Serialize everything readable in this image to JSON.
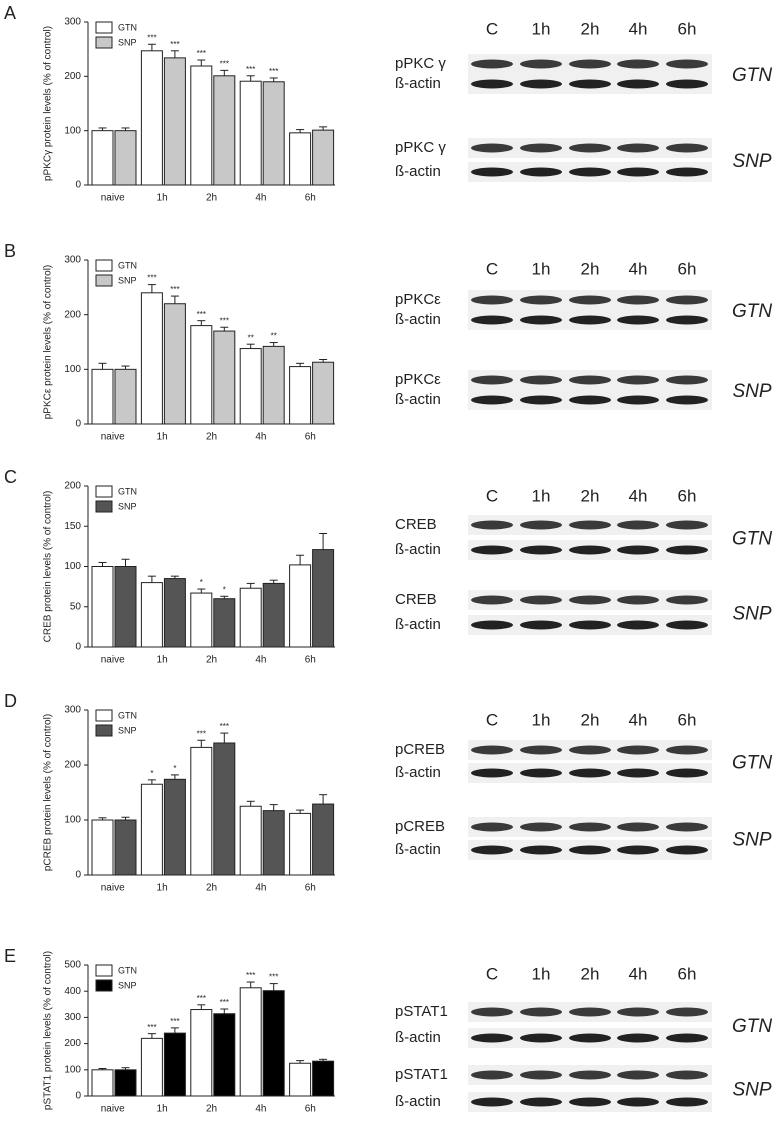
{
  "chart_data": [
    {
      "type": "bar",
      "panel": "A",
      "y_label": "pPKCγ protein levels (% of control)",
      "categories": [
        "naive",
        "1h",
        "2h",
        "4h",
        "6h"
      ],
      "series": [
        {
          "name": "GTN",
          "color": "#ffffff",
          "values": [
            100,
            247,
            219,
            191,
            96
          ],
          "errors": [
            5,
            12,
            11,
            10,
            6
          ],
          "annotations": [
            null,
            "***",
            "***",
            "***",
            null
          ]
        },
        {
          "name": "SNP",
          "color": "#c8c8c8",
          "values": [
            100,
            234,
            201,
            190,
            101
          ],
          "errors": [
            5,
            13,
            10,
            7,
            6
          ],
          "annotations": [
            null,
            "***",
            "***",
            "***",
            null
          ]
        }
      ],
      "ylim": [
        0,
        300
      ],
      "yticks": [
        0,
        100,
        200,
        300
      ]
    },
    {
      "type": "bar",
      "panel": "B",
      "y_label": "pPKCε protein levels (% of control)",
      "categories": [
        "naive",
        "1h",
        "2h",
        "4h",
        "6h"
      ],
      "series": [
        {
          "name": "GTN",
          "color": "#ffffff",
          "values": [
            100,
            240,
            180,
            138,
            105
          ],
          "errors": [
            11,
            15,
            9,
            8,
            6
          ],
          "annotations": [
            null,
            "***",
            "***",
            "**",
            null
          ]
        },
        {
          "name": "SNP",
          "color": "#c8c8c8",
          "values": [
            100,
            220,
            170,
            142,
            113
          ],
          "errors": [
            6,
            14,
            7,
            7,
            5
          ],
          "annotations": [
            null,
            "***",
            "***",
            "**",
            null
          ]
        }
      ],
      "ylim": [
        0,
        300
      ],
      "yticks": [
        0,
        100,
        200,
        300
      ]
    },
    {
      "type": "bar",
      "panel": "C",
      "y_label": "CREB protein levels (% of control)",
      "categories": [
        "naive",
        "1h",
        "2h",
        "4h",
        "6h"
      ],
      "series": [
        {
          "name": "GTN",
          "color": "#ffffff",
          "values": [
            100,
            80,
            67,
            73,
            102
          ],
          "errors": [
            5,
            8,
            5,
            6,
            12
          ],
          "annotations": [
            null,
            null,
            "*",
            null,
            null
          ]
        },
        {
          "name": "SNP",
          "color": "#555555",
          "values": [
            100,
            85,
            60,
            79,
            121
          ],
          "errors": [
            9,
            3,
            3,
            4,
            20
          ],
          "annotations": [
            null,
            null,
            "*",
            null,
            null
          ]
        }
      ],
      "ylim": [
        0,
        200
      ],
      "yticks": [
        0,
        50,
        100,
        150,
        200
      ]
    },
    {
      "type": "bar",
      "panel": "D",
      "y_label": "pCREB protein levels (% of control)",
      "categories": [
        "naive",
        "1h",
        "2h",
        "4h",
        "6h"
      ],
      "series": [
        {
          "name": "GTN",
          "color": "#ffffff",
          "values": [
            100,
            165,
            232,
            125,
            112
          ],
          "errors": [
            4,
            8,
            13,
            9,
            6
          ],
          "annotations": [
            null,
            "*",
            "***",
            null,
            null
          ]
        },
        {
          "name": "SNP",
          "color": "#555555",
          "values": [
            100,
            174,
            240,
            117,
            129
          ],
          "errors": [
            5,
            8,
            18,
            11,
            17
          ],
          "annotations": [
            null,
            "*",
            "***",
            null,
            null
          ]
        }
      ],
      "ylim": [
        0,
        300
      ],
      "yticks": [
        0,
        100,
        200,
        300
      ]
    },
    {
      "type": "bar",
      "panel": "E",
      "y_label": "pSTAT1 protein levels (% of control)",
      "categories": [
        "naive",
        "1h",
        "2h",
        "4h",
        "6h"
      ],
      "series": [
        {
          "name": "GTN",
          "color": "#ffffff",
          "values": [
            100,
            220,
            330,
            413,
            125
          ],
          "errors": [
            5,
            18,
            18,
            22,
            10
          ],
          "annotations": [
            null,
            "***",
            "***",
            "***",
            null
          ]
        },
        {
          "name": "SNP",
          "color": "#000000",
          "values": [
            100,
            240,
            314,
            402,
            133
          ],
          "errors": [
            8,
            20,
            18,
            27,
            7
          ],
          "annotations": [
            null,
            "***",
            "***",
            "***",
            null
          ]
        }
      ],
      "ylim": [
        0,
        500
      ],
      "yticks": [
        0,
        100,
        200,
        300,
        400,
        500
      ]
    }
  ],
  "blots": [
    {
      "lanes": [
        "C",
        "1h",
        "2h",
        "4h",
        "6h"
      ],
      "groups": [
        {
          "protein": "pPKC γ",
          "control": "ß-actin",
          "treatment": "GTN"
        },
        {
          "protein": "pPKC γ",
          "control": "ß-actin",
          "treatment": "SNP"
        }
      ]
    },
    {
      "lanes": [
        "C",
        "1h",
        "2h",
        "4h",
        "6h"
      ],
      "groups": [
        {
          "protein": "pPKCε",
          "control": "ß-actin",
          "treatment": "GTN"
        },
        {
          "protein": "pPKCε",
          "control": "ß-actin",
          "treatment": "SNP"
        }
      ]
    },
    {
      "lanes": [
        "C",
        "1h",
        "2h",
        "4h",
        "6h"
      ],
      "groups": [
        {
          "protein": "CREB",
          "control": "ß-actin",
          "treatment": "GTN"
        },
        {
          "protein": "CREB",
          "control": "ß-actin",
          "treatment": "SNP"
        }
      ]
    },
    {
      "lanes": [
        "C",
        "1h",
        "2h",
        "4h",
        "6h"
      ],
      "groups": [
        {
          "protein": "pCREB",
          "control": "ß-actin",
          "treatment": "GTN"
        },
        {
          "protein": "pCREB",
          "control": "ß-actin",
          "treatment": "SNP"
        }
      ]
    },
    {
      "lanes": [
        "C",
        "1h",
        "2h",
        "4h",
        "6h"
      ],
      "groups": [
        {
          "protein": "pSTAT1",
          "control": "ß-actin",
          "treatment": "GTN"
        },
        {
          "protein": "pSTAT1",
          "control": "ß-actin",
          "treatment": "SNP"
        }
      ]
    }
  ]
}
